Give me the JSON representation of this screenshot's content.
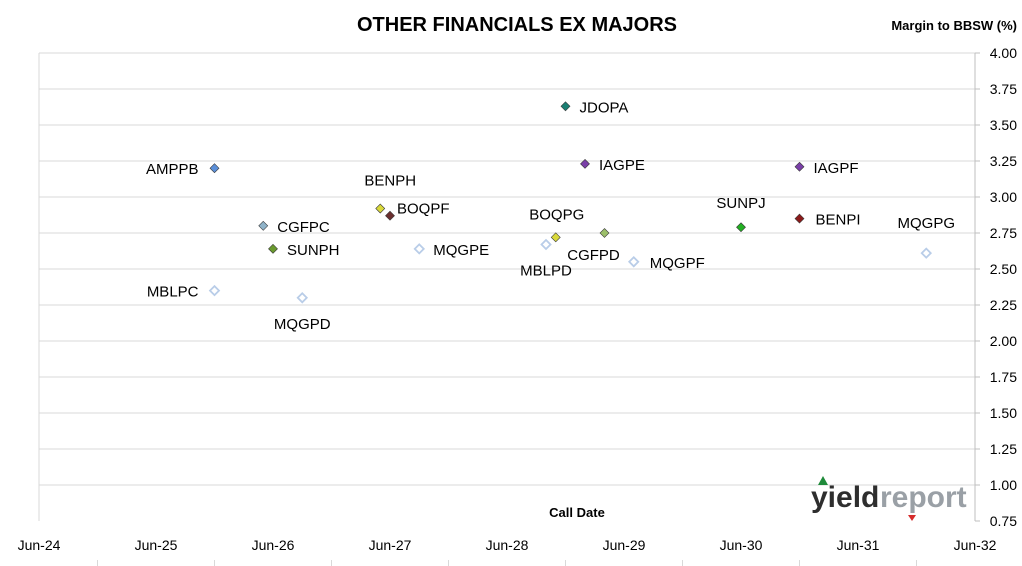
{
  "chart_data": {
    "type": "scatter",
    "title": "OTHER FINANCIALS EX MAJORS",
    "ylabel": "Margin to BBSW (%)",
    "xlabel": "Call Date",
    "ylim": [
      0.75,
      4.0
    ],
    "y_ticks": [
      "0.75",
      "1.00",
      "1.25",
      "1.50",
      "1.75",
      "2.00",
      "2.25",
      "2.50",
      "2.75",
      "3.00",
      "3.25",
      "3.50",
      "3.75",
      "4.00"
    ],
    "x_ticks": [
      "Jun-24",
      "Jun-25",
      "Jun-26",
      "Jun-27",
      "Jun-28",
      "Jun-29",
      "Jun-30",
      "Jun-31",
      "Jun-32"
    ],
    "xlim": [
      "2024-06",
      "2032-06"
    ],
    "grid": "horizontal",
    "points": [
      {
        "label": "AMPPB",
        "x": "2025-12",
        "y": 3.2,
        "color": "#5b8fd9",
        "hollow": false
      },
      {
        "label": "JDOPA",
        "x": "2028-12",
        "y": 3.63,
        "color": "#1a7f73",
        "hollow": false
      },
      {
        "label": "IAGPE",
        "x": "2029-02",
        "y": 3.23,
        "color": "#7a3fa8",
        "hollow": false
      },
      {
        "label": "IAGPF",
        "x": "2030-12",
        "y": 3.21,
        "color": "#7a3fa8",
        "hollow": false
      },
      {
        "label": "BENPH",
        "x": "2027-05",
        "y": 2.92,
        "color": "#d9d93a",
        "hollow": false
      },
      {
        "label": "BOQPF",
        "x": "2027-06",
        "y": 2.87,
        "color": "#6b2f2f",
        "hollow": false
      },
      {
        "label": "CGFPC",
        "x": "2026-05",
        "y": 2.8,
        "color": "#8fb3c9",
        "hollow": false
      },
      {
        "label": "SUNPH",
        "x": "2026-06",
        "y": 2.64,
        "color": "#6a9a2e",
        "hollow": false
      },
      {
        "label": "MQGPE",
        "x": "2027-09",
        "y": 2.64,
        "color": "#b9cde8",
        "hollow": true
      },
      {
        "label": "BOQPG",
        "x": "2028-11",
        "y": 2.72,
        "color": "#d9d93a",
        "hollow": false
      },
      {
        "label": "MBLPD",
        "x": "2028-10",
        "y": 2.67,
        "color": "#b9cde8",
        "hollow": true
      },
      {
        "label": "CGFPD",
        "x": "2029-04",
        "y": 2.75,
        "color": "#9cbf6a",
        "hollow": false
      },
      {
        "label": "MQGPF",
        "x": "2029-07",
        "y": 2.55,
        "color": "#b9cde8",
        "hollow": true
      },
      {
        "label": "SUNPJ",
        "x": "2030-06",
        "y": 2.79,
        "color": "#22b022",
        "hollow": false
      },
      {
        "label": "BENPI",
        "x": "2030-12",
        "y": 2.85,
        "color": "#8b1a1a",
        "hollow": false
      },
      {
        "label": "MQGPG",
        "x": "2032-01",
        "y": 2.61,
        "color": "#b9cde8",
        "hollow": true
      },
      {
        "label": "MBLPC",
        "x": "2025-12",
        "y": 2.35,
        "color": "#b9cde8",
        "hollow": true
      },
      {
        "label": "MQGPD",
        "x": "2026-09",
        "y": 2.3,
        "color": "#b9cde8",
        "hollow": true
      }
    ]
  },
  "branding": {
    "yield_text": "yield",
    "report_text": "report",
    "accent_up": "#1f8a3a",
    "accent_down": "#d62b2b"
  }
}
